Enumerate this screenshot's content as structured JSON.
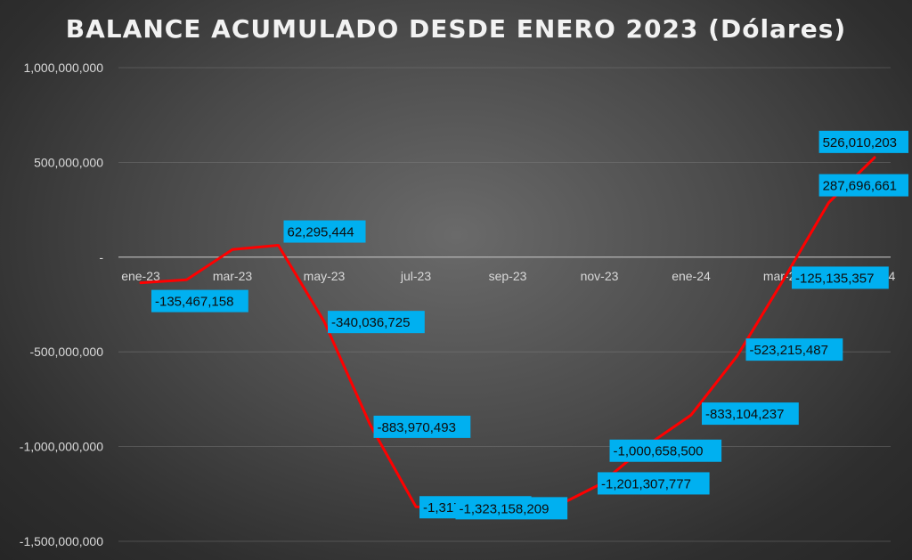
{
  "title": "BALANCE ACUMULADO DESDE ENERO 2023 (Dólares)",
  "colors": {
    "line": "#ff0000",
    "label_bg": "#00b0f0",
    "label_text": "#0d0d0d",
    "axis_text": "#d9d9d9",
    "gridline": "#7f7f7f",
    "zero_line": "#bfbfbf"
  },
  "chart_data": {
    "type": "line",
    "title": "BALANCE ACUMULADO DESDE ENERO 2023 (Dólares)",
    "xlabel": "",
    "ylabel": "",
    "ylim": [
      -1500000000,
      1000000000
    ],
    "y_ticks": [
      "1,000,000,000",
      "500,000,000",
      "-",
      "-500,000,000",
      "-1,000,000,000",
      "-1,500,000,000"
    ],
    "y_tick_values": [
      1000000000,
      500000000,
      0,
      -500000000,
      -1000000000,
      -1500000000
    ],
    "x_tick_labels": [
      "ene-23",
      "mar-23",
      "may-23",
      "jul-23",
      "sep-23",
      "nov-23",
      "ene-24",
      "mar-24",
      "may-24"
    ],
    "x_tick_months": [
      "2023-01",
      "2023-03",
      "2023-05",
      "2023-07",
      "2023-09",
      "2023-11",
      "2024-01",
      "2024-03",
      "2024-05"
    ],
    "grid": true,
    "legend": "none",
    "x": [
      "2023-01",
      "2023-02",
      "2023-03",
      "2023-04",
      "2023-05",
      "2023-06",
      "2023-07",
      "2023-08",
      "2023-09",
      "2023-10",
      "2023-11",
      "2023-12",
      "2024-01",
      "2024-02",
      "2024-03",
      "2024-04",
      "2024-05"
    ],
    "values": [
      -135467158,
      -120000000,
      40000000,
      62295444,
      -340036725,
      -883970493,
      -1317895332,
      -1320000000,
      -1345000000,
      -1323158209,
      -1201307777,
      -1000658500,
      -833104237,
      -523215487,
      -125135357,
      287696661,
      526010203
    ],
    "data_labels": [
      {
        "index": 0,
        "text": "-135,467,158"
      },
      {
        "index": 3,
        "text": "62,295,444"
      },
      {
        "index": 4,
        "text": "-340,036,725"
      },
      {
        "index": 5,
        "text": "-883,970,493"
      },
      {
        "index": 6,
        "text": "-1,317,895,332"
      },
      {
        "index": 9,
        "text": "-1,323,158,209"
      },
      {
        "index": 10,
        "text": "-1,201,307,777"
      },
      {
        "index": 11,
        "text": "-1,000,658,500"
      },
      {
        "index": 12,
        "text": "-833,104,237"
      },
      {
        "index": 13,
        "text": "-523,215,487"
      },
      {
        "index": 14,
        "text": "-125,135,357"
      },
      {
        "index": 15,
        "text": "287,696,661"
      },
      {
        "index": 16,
        "text": "526,010,203"
      }
    ]
  }
}
